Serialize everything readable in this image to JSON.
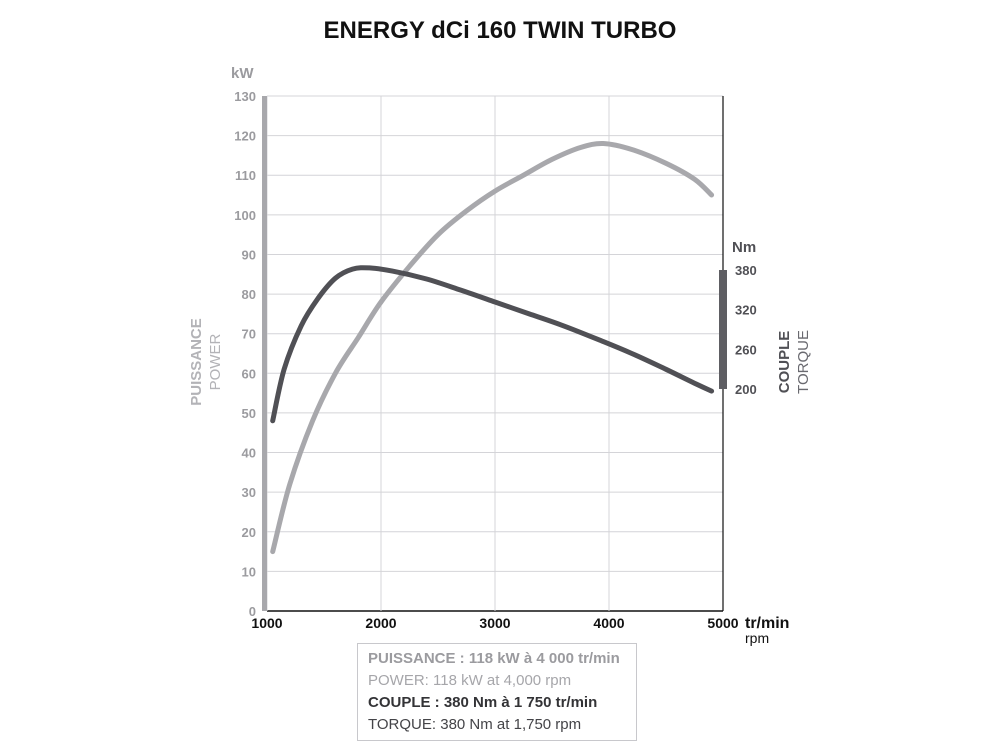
{
  "chart_data": {
    "type": "line",
    "title": "ENERGY dCi 160 TWIN TURBO",
    "x_axis": {
      "label_fr": "tr/min",
      "label_en": "rpm",
      "range": [
        1000,
        5000
      ],
      "ticks": [
        "1000",
        "2000",
        "3000",
        "4000",
        "5000"
      ]
    },
    "y_axis_left": {
      "unit": "kW",
      "label_fr": "PUISSANCE",
      "label_en": "POWER",
      "range": [
        0,
        130
      ],
      "ticks": [
        "0",
        "10",
        "20",
        "30",
        "40",
        "50",
        "60",
        "70",
        "80",
        "90",
        "100",
        "110",
        "120",
        "130"
      ]
    },
    "y_axis_right": {
      "unit": "Nm",
      "label_fr": "COUPLE",
      "label_en": "TORQUE",
      "range": [
        200,
        380
      ],
      "ticks": [
        "200",
        "260",
        "320",
        "380"
      ]
    },
    "grid": true,
    "series": [
      {
        "name": "PUISSANCE",
        "axis": "left",
        "color": "#a8a8ac",
        "points": [
          [
            1050,
            15
          ],
          [
            1200,
            32
          ],
          [
            1400,
            48
          ],
          [
            1600,
            60
          ],
          [
            1800,
            69
          ],
          [
            2000,
            78
          ],
          [
            2250,
            87
          ],
          [
            2500,
            95
          ],
          [
            2750,
            101
          ],
          [
            3000,
            106
          ],
          [
            3250,
            110
          ],
          [
            3500,
            114
          ],
          [
            3750,
            117
          ],
          [
            3950,
            118
          ],
          [
            4200,
            116.5
          ],
          [
            4500,
            113
          ],
          [
            4750,
            109
          ],
          [
            4900,
            105
          ]
        ]
      },
      {
        "name": "COUPLE",
        "axis": "left",
        "color": "#505055",
        "points": [
          [
            1050,
            48
          ],
          [
            1150,
            61
          ],
          [
            1300,
            72
          ],
          [
            1450,
            79
          ],
          [
            1600,
            84
          ],
          [
            1750,
            86.3
          ],
          [
            1900,
            86.6
          ],
          [
            2100,
            85.8
          ],
          [
            2400,
            83.8
          ],
          [
            2700,
            81
          ],
          [
            3000,
            78
          ],
          [
            3300,
            75
          ],
          [
            3600,
            72
          ],
          [
            3950,
            68
          ],
          [
            4200,
            65
          ],
          [
            4500,
            61
          ],
          [
            4750,
            57.5
          ],
          [
            4900,
            55.5
          ]
        ]
      }
    ],
    "summary": {
      "power_fr": "PUISSANCE : 118 kW à 4 000 tr/min",
      "power_en": "POWER: 118 kW at 4,000 rpm",
      "torque_fr": "COUPLE : 380 Nm à 1 750 tr/min",
      "torque_en": "TORQUE: 380 Nm at 1,750 rpm"
    }
  }
}
